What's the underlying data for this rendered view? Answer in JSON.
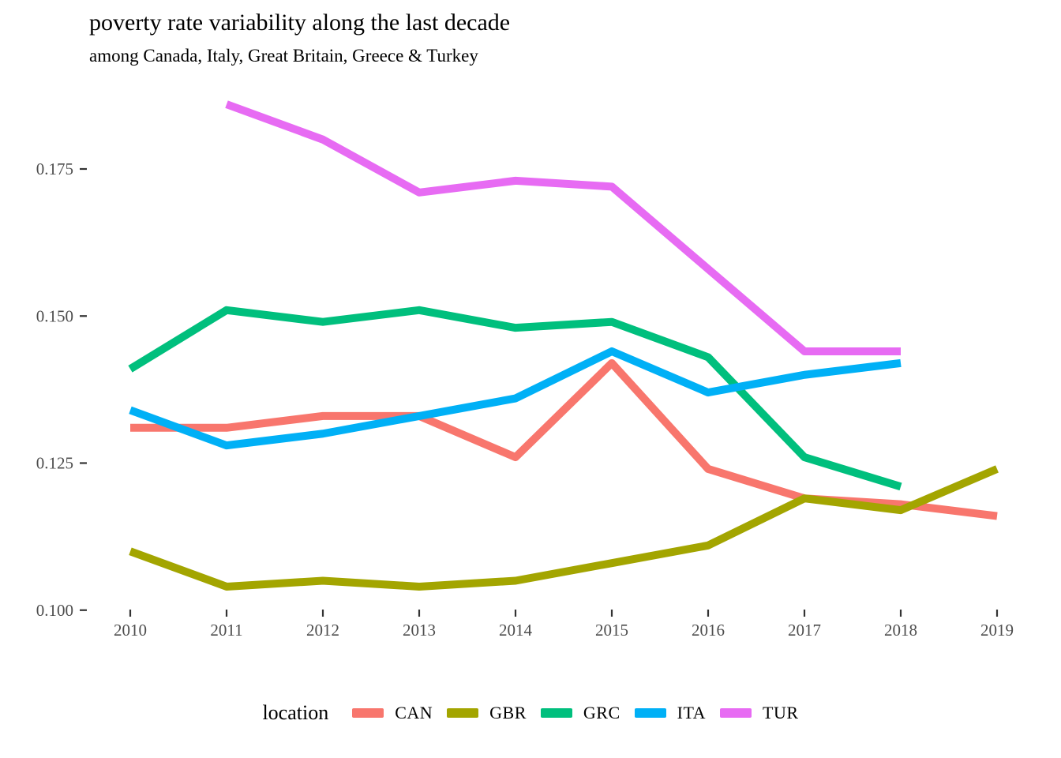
{
  "title": "poverty rate variability along the last decade",
  "subtitle": "among Canada, Italy, Great Britain, Greece & Turkey",
  "legend": {
    "title": "location",
    "entries": [
      {
        "label": "CAN",
        "color": "#F8766D"
      },
      {
        "label": "GBR",
        "color": "#A3A500"
      },
      {
        "label": "GRC",
        "color": "#00BF7D"
      },
      {
        "label": "ITA",
        "color": "#00B0F6"
      },
      {
        "label": "TUR",
        "color": "#E76BF3"
      }
    ]
  },
  "chart_data": {
    "type": "line",
    "title": "poverty rate variability along the last decade",
    "subtitle": "among Canada, Italy, Great Britain, Greece & Turkey",
    "xlabel": "",
    "ylabel": "",
    "grid": false,
    "legend_position": "bottom",
    "xticks": [
      2010,
      2011,
      2012,
      2013,
      2014,
      2015,
      2016,
      2017,
      2018,
      2019
    ],
    "yticks": [
      0.1,
      0.125,
      0.15,
      0.175
    ],
    "ylim": [
      0.1,
      0.1875
    ],
    "series": [
      {
        "name": "CAN",
        "color": "#F8766D",
        "x": [
          2010,
          2011,
          2012,
          2013,
          2014,
          2015,
          2016,
          2017,
          2018,
          2019
        ],
        "values": [
          0.131,
          0.131,
          0.133,
          0.133,
          0.126,
          0.142,
          0.124,
          0.119,
          0.118,
          0.116
        ]
      },
      {
        "name": "GBR",
        "color": "#A3A500",
        "x": [
          2010,
          2011,
          2012,
          2013,
          2014,
          2015,
          2016,
          2017,
          2018,
          2019
        ],
        "values": [
          0.11,
          0.104,
          0.105,
          0.104,
          0.105,
          0.108,
          0.111,
          0.119,
          0.117,
          0.124
        ]
      },
      {
        "name": "GRC",
        "color": "#00BF7D",
        "x": [
          2010,
          2011,
          2012,
          2013,
          2014,
          2015,
          2016,
          2017,
          2018
        ],
        "values": [
          0.141,
          0.151,
          0.149,
          0.151,
          0.148,
          0.149,
          0.143,
          0.126,
          0.121
        ]
      },
      {
        "name": "ITA",
        "color": "#00B0F6",
        "x": [
          2010,
          2011,
          2012,
          2013,
          2014,
          2015,
          2016,
          2017,
          2018
        ],
        "values": [
          0.134,
          0.128,
          0.13,
          0.133,
          0.136,
          0.144,
          0.137,
          0.14,
          0.142
        ]
      },
      {
        "name": "TUR",
        "color": "#E76BF3",
        "x": [
          2011,
          2012,
          2013,
          2014,
          2015,
          2016,
          2017,
          2018
        ],
        "values": [
          0.186,
          0.18,
          0.171,
          0.173,
          0.172,
          0.158,
          0.144,
          0.144
        ]
      }
    ]
  }
}
